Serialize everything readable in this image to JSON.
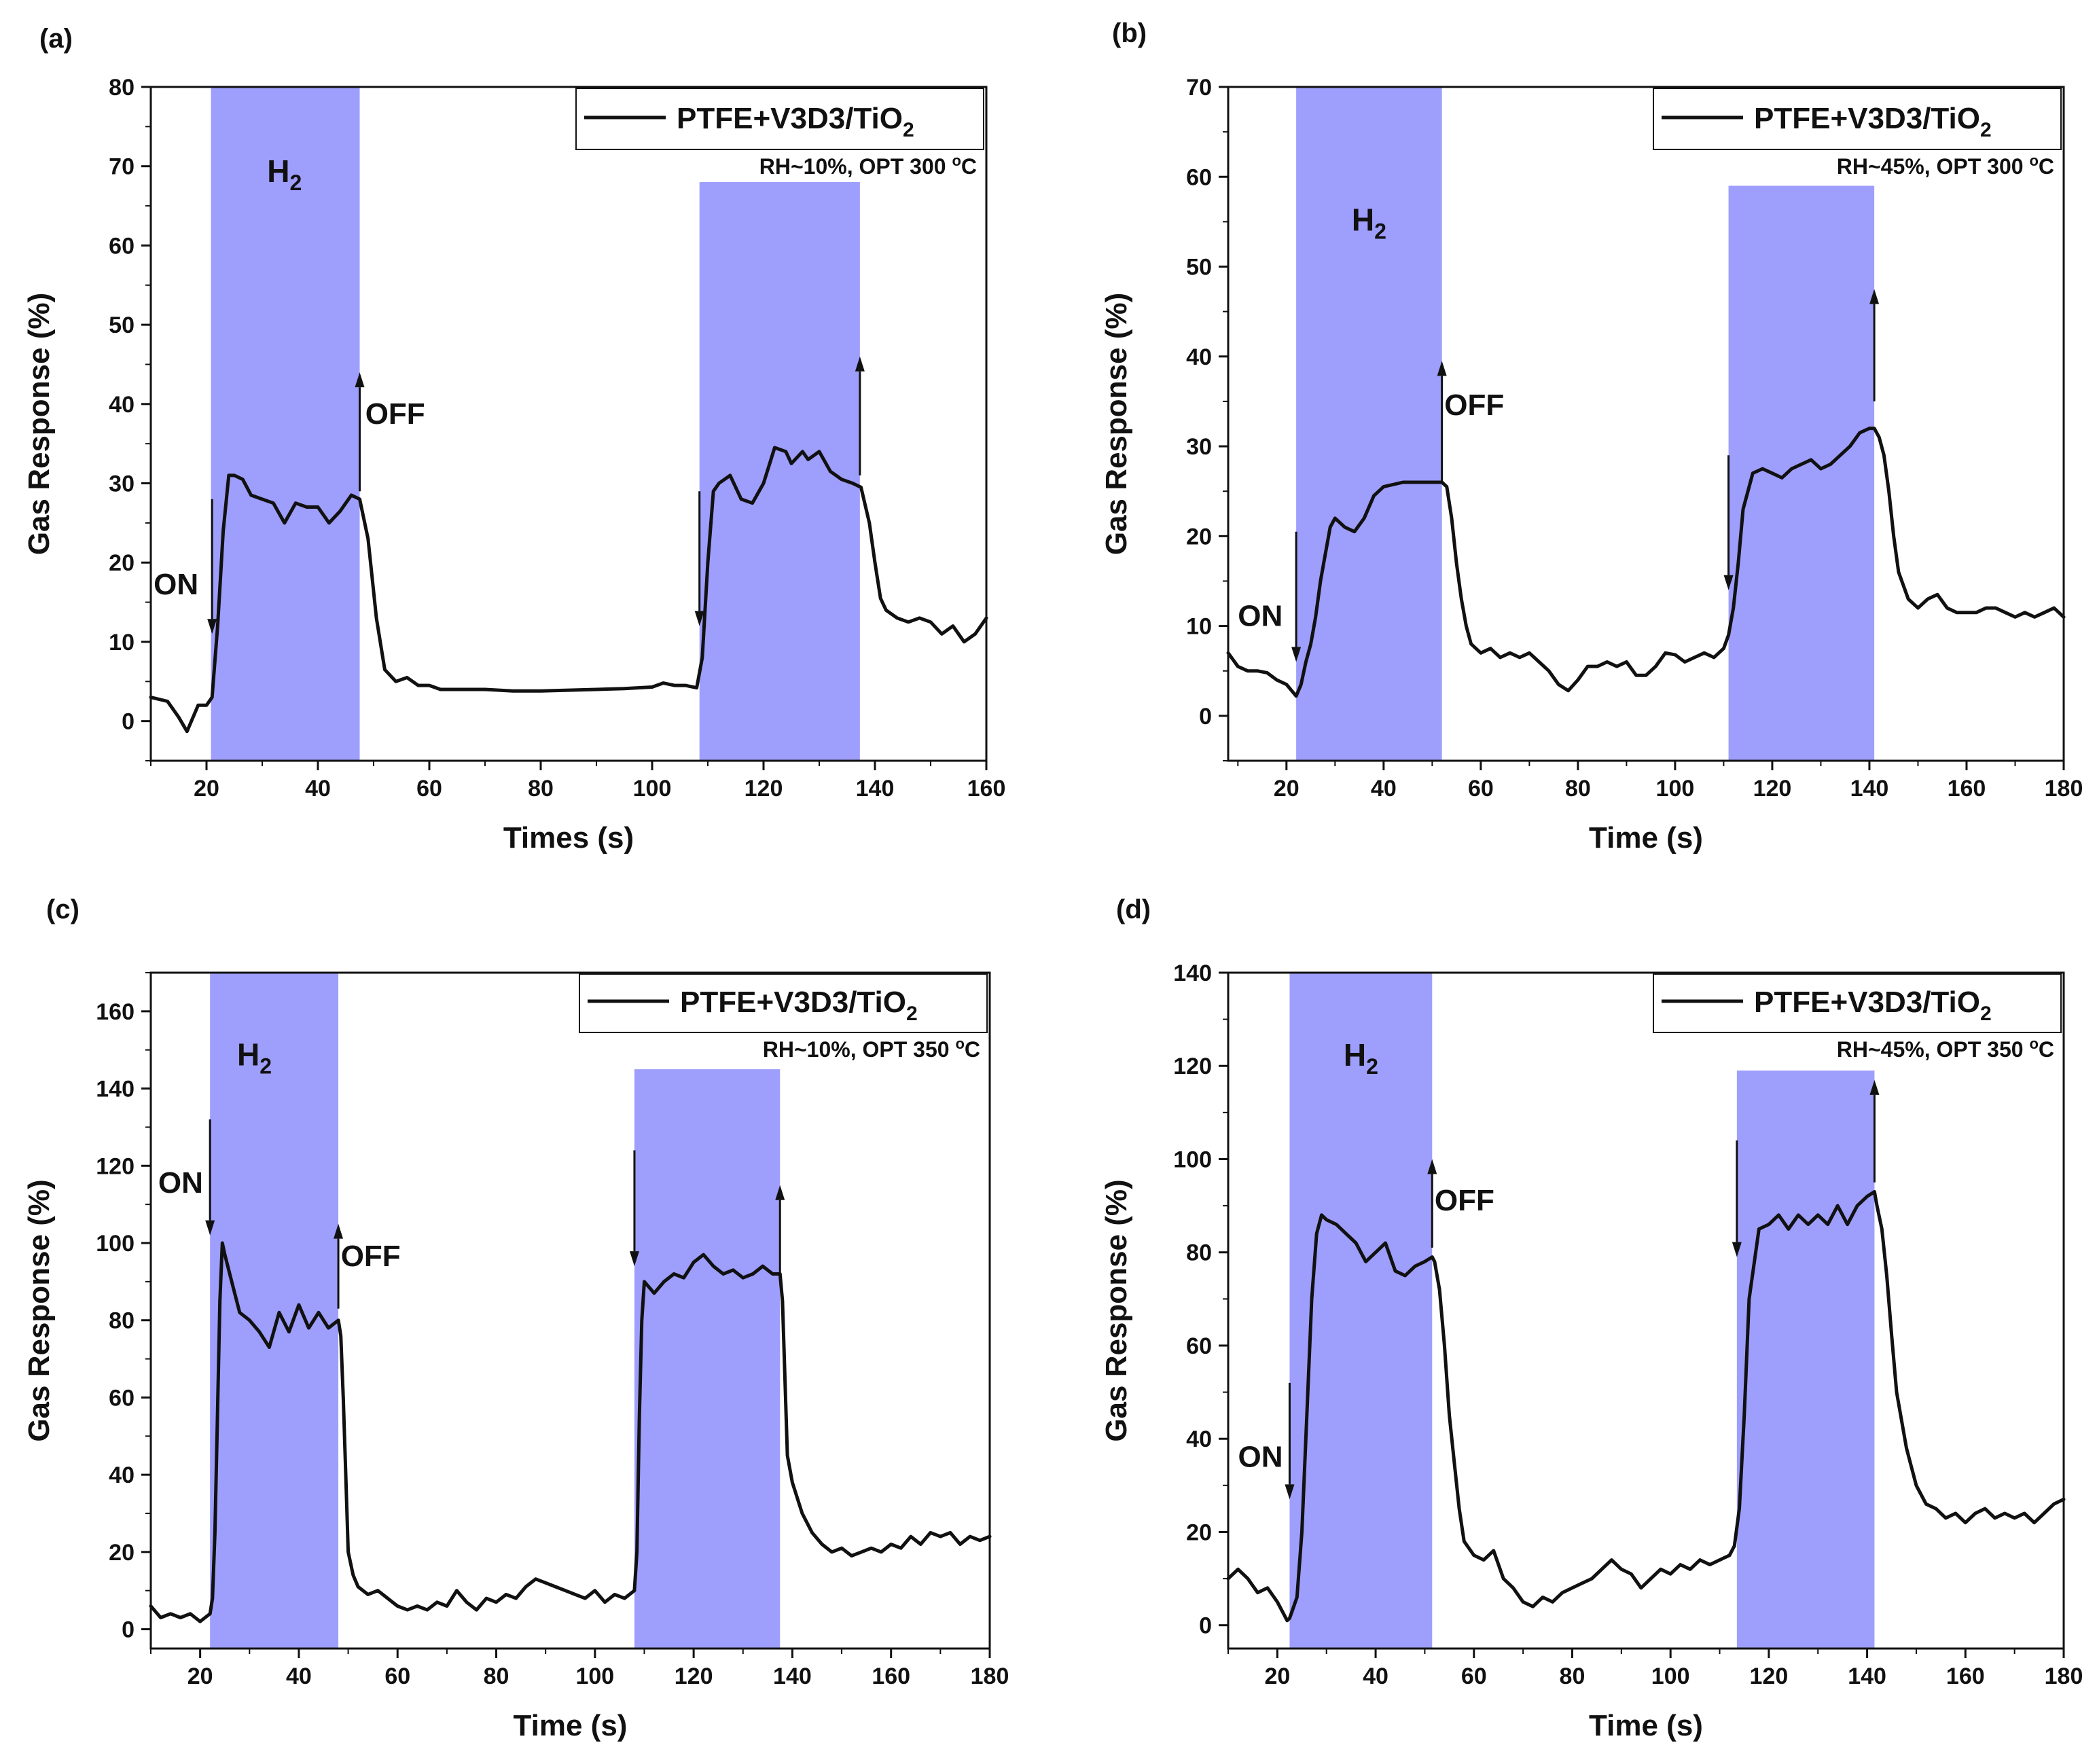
{
  "chart_data": [
    {
      "panel": "(a)",
      "type": "line",
      "title": "",
      "xlabel": "Times (s)",
      "ylabel": "Gas Response (%)",
      "xlim": [
        10,
        160
      ],
      "ylim": [
        -5,
        80
      ],
      "xticks": [
        20,
        40,
        60,
        80,
        100,
        120,
        140,
        160
      ],
      "yticks": [
        0,
        10,
        20,
        30,
        40,
        50,
        60,
        70,
        80
      ],
      "legend": {
        "label": "PTFE+V3D3/TiO",
        "subscript": "2",
        "position": "top-right"
      },
      "condition": {
        "text": "RH~10%, OPT 300 ",
        "superscript": "o",
        "tail": "C"
      },
      "gas_windows": [
        {
          "start": 20.8,
          "end": 47.5,
          "top": 80
        },
        {
          "start": 108.5,
          "end": 137.3,
          "top": 68
        }
      ],
      "gas_label": {
        "text": "H",
        "subscript": "2",
        "x": 34,
        "y": 68
      },
      "annotations": [
        {
          "kind": "on",
          "text": "ON",
          "x": 21,
          "y_from": 28,
          "y_to": 11,
          "text_x": 10.5,
          "text_y": 16
        },
        {
          "kind": "off",
          "text": "OFF",
          "x": 47.5,
          "y_from": 29,
          "y_to": 44,
          "text_x": 48.5,
          "text_y": 37.5
        },
        {
          "kind": "on",
          "text": "",
          "x": 108.5,
          "y_from": 29,
          "y_to": 12
        },
        {
          "kind": "off",
          "text": "",
          "x": 137.3,
          "y_from": 31,
          "y_to": 46
        }
      ],
      "series": [
        {
          "name": "PTFE+V3D3/TiO2",
          "x": [
            10,
            13,
            15,
            16.5,
            18.5,
            20,
            21,
            22,
            23,
            24,
            25,
            26.5,
            28,
            30,
            32,
            34,
            36,
            38,
            40,
            42,
            44,
            46,
            47.5,
            49,
            50.5,
            52,
            54,
            56,
            58,
            60,
            62,
            66,
            70,
            75,
            80,
            85,
            90,
            95,
            100,
            102,
            104,
            106,
            108,
            109,
            110,
            111,
            112,
            114,
            116,
            118,
            120,
            122,
            124,
            125,
            127,
            128,
            130,
            132,
            134,
            136,
            137.5,
            139,
            140,
            141,
            142,
            144,
            146,
            148,
            150,
            152,
            154,
            156,
            158,
            160
          ],
          "y": [
            3,
            2.5,
            0.5,
            -1.3,
            2,
            2,
            3,
            12,
            24,
            31,
            31,
            30.5,
            28.5,
            28,
            27.5,
            25,
            27.5,
            27,
            27,
            25,
            26.5,
            28.5,
            28,
            23,
            13,
            6.5,
            5,
            5.5,
            4.5,
            4.5,
            4,
            4,
            4,
            3.8,
            3.8,
            3.9,
            4,
            4.1,
            4.3,
            4.8,
            4.5,
            4.5,
            4.2,
            8,
            20,
            29,
            30,
            31,
            28,
            27.5,
            30,
            34.5,
            34,
            32.5,
            34,
            33,
            34,
            31.5,
            30.5,
            30,
            29.5,
            25,
            20,
            15.5,
            14,
            13,
            12.5,
            13,
            12.5,
            11,
            12,
            10,
            11,
            13
          ]
        }
      ]
    },
    {
      "panel": "(b)",
      "type": "line",
      "title": "",
      "xlabel": "Time (s)",
      "ylabel": "Gas Response (%)",
      "xlim": [
        8,
        180
      ],
      "ylim": [
        -5,
        70
      ],
      "xticks": [
        20,
        40,
        60,
        80,
        100,
        120,
        140,
        160,
        180
      ],
      "yticks": [
        0,
        10,
        20,
        30,
        40,
        50,
        60,
        70
      ],
      "legend": {
        "label": "PTFE+V3D3/TiO",
        "subscript": "2",
        "position": "top-right"
      },
      "condition": {
        "text": "RH~45%, OPT 300 ",
        "superscript": "o",
        "tail": "C"
      },
      "gas_windows": [
        {
          "start": 22,
          "end": 52,
          "top": 70
        },
        {
          "start": 111,
          "end": 141,
          "top": 59
        }
      ],
      "gas_label": {
        "text": "H",
        "subscript": "2",
        "x": 37,
        "y": 54
      },
      "annotations": [
        {
          "kind": "on",
          "text": "ON",
          "x": 22,
          "y_from": 20.5,
          "y_to": 6,
          "text_x": 10,
          "text_y": 10
        },
        {
          "kind": "off",
          "text": "OFF",
          "x": 52,
          "y_from": 26,
          "y_to": 39.5,
          "text_x": 52.5,
          "text_y": 33.5
        },
        {
          "kind": "on",
          "text": "",
          "x": 111,
          "y_from": 29,
          "y_to": 14
        },
        {
          "kind": "off",
          "text": "",
          "x": 141,
          "y_from": 35,
          "y_to": 47.5
        }
      ],
      "series": [
        {
          "name": "PTFE+V3D3/TiO2",
          "x": [
            8,
            10,
            12,
            14,
            16,
            18,
            20,
            22,
            23,
            24,
            25,
            26,
            27,
            28,
            29,
            30,
            32,
            34,
            36,
            38,
            40,
            44,
            48,
            52,
            53,
            54,
            55,
            56,
            57,
            58,
            60,
            62,
            64,
            66,
            68,
            70,
            72,
            74,
            76,
            78,
            80,
            82,
            84,
            86,
            88,
            90,
            92,
            94,
            96,
            98,
            100,
            102,
            104,
            106,
            108,
            110,
            111,
            112,
            113,
            114,
            116,
            118,
            120,
            122,
            124,
            126,
            128,
            130,
            132,
            134,
            136,
            138,
            140,
            141,
            142,
            143,
            144,
            145,
            146,
            148,
            150,
            152,
            154,
            156,
            158,
            160,
            162,
            164,
            166,
            168,
            170,
            172,
            174,
            176,
            178,
            180
          ],
          "y": [
            7,
            5.5,
            5,
            5,
            4.8,
            4,
            3.5,
            2.2,
            3.5,
            6,
            8,
            11,
            15,
            18,
            21,
            22,
            21,
            20.5,
            22,
            24.5,
            25.5,
            26,
            26,
            26,
            25.5,
            22,
            17,
            13,
            10,
            8,
            7,
            7.5,
            6.5,
            7,
            6.5,
            7,
            6,
            5,
            3.5,
            2.8,
            4,
            5.5,
            5.5,
            6,
            5.5,
            6,
            4.5,
            4.5,
            5.5,
            7,
            6.8,
            6,
            6.5,
            7,
            6.5,
            7.5,
            9,
            12,
            17,
            23,
            27,
            27.5,
            27,
            26.5,
            27.5,
            28,
            28.5,
            27.5,
            28,
            29,
            30,
            31.5,
            32,
            32,
            31,
            29,
            25,
            20,
            16,
            13,
            12,
            13,
            13.5,
            12,
            11.5,
            11.5,
            11.5,
            12,
            12,
            11.5,
            11,
            11.5,
            11,
            11.5,
            12,
            11
          ]
        }
      ]
    },
    {
      "panel": "(c)",
      "type": "line",
      "title": "",
      "xlabel": "Time (s)",
      "ylabel": "Gas Response (%)",
      "xlim": [
        10,
        180
      ],
      "ylim": [
        -5,
        170
      ],
      "xticks": [
        20,
        40,
        60,
        80,
        100,
        120,
        140,
        160,
        180
      ],
      "yticks": [
        0,
        20,
        40,
        60,
        80,
        100,
        120,
        140,
        160
      ],
      "legend": {
        "label": "PTFE+V3D3/TiO",
        "subscript": "2",
        "position": "top-right"
      },
      "condition": {
        "text": "RH~10%, OPT 350 ",
        "superscript": "o",
        "tail": "C"
      },
      "gas_windows": [
        {
          "start": 22,
          "end": 48,
          "top": 170
        },
        {
          "start": 108,
          "end": 137.5,
          "top": 145
        }
      ],
      "gas_label": {
        "text": "H",
        "subscript": "2",
        "x": 31,
        "y": 146
      },
      "annotations": [
        {
          "kind": "on",
          "text": "ON",
          "x": 22,
          "y_from": 132,
          "y_to": 102,
          "text_x": 11.5,
          "text_y": 113
        },
        {
          "kind": "off",
          "text": "OFF",
          "x": 48,
          "y_from": 83,
          "y_to": 105,
          "text_x": 48.5,
          "text_y": 94
        },
        {
          "kind": "on",
          "text": "",
          "x": 108,
          "y_from": 124,
          "y_to": 94
        },
        {
          "kind": "off",
          "text": "",
          "x": 137.5,
          "y_from": 92,
          "y_to": 115
        }
      ],
      "series": [
        {
          "name": "PTFE+V3D3/TiO2",
          "x": [
            10,
            12,
            14,
            16,
            18,
            20,
            22,
            22.5,
            23,
            23.5,
            24,
            24.5,
            25,
            26,
            27,
            28,
            30,
            32,
            34,
            36,
            38,
            40,
            42,
            44,
            46,
            48,
            48.5,
            49,
            49.5,
            50,
            51,
            52,
            54,
            56,
            58,
            60,
            62,
            64,
            66,
            68,
            70,
            72,
            74,
            76,
            78,
            80,
            82,
            84,
            86,
            88,
            90,
            92,
            94,
            96,
            98,
            100,
            102,
            104,
            106,
            108,
            108.5,
            109,
            109.5,
            110,
            112,
            114,
            116,
            118,
            120,
            122,
            124,
            126,
            128,
            130,
            132,
            134,
            136,
            137.5,
            138,
            138.5,
            139,
            140,
            142,
            144,
            146,
            148,
            150,
            152,
            154,
            156,
            158,
            160,
            162,
            164,
            166,
            168,
            170,
            172,
            174,
            176,
            178,
            180
          ],
          "y": [
            6,
            3,
            4,
            3,
            4,
            2,
            4,
            8,
            25,
            55,
            85,
            100,
            97,
            92,
            87,
            82,
            80,
            77,
            73,
            82,
            77,
            84,
            78,
            82,
            78,
            80,
            76,
            60,
            40,
            20,
            14,
            11,
            9,
            10,
            8,
            6,
            5,
            6,
            5,
            7,
            6,
            10,
            7,
            5,
            8,
            7,
            9,
            8,
            11,
            13,
            12,
            11,
            10,
            9,
            8,
            10,
            7,
            9,
            8,
            10,
            20,
            55,
            80,
            90,
            87,
            90,
            92,
            91,
            95,
            97,
            94,
            92,
            93,
            91,
            92,
            94,
            92,
            92,
            85,
            65,
            45,
            38,
            30,
            25,
            22,
            20,
            21,
            19,
            20,
            21,
            20,
            22,
            21,
            24,
            22,
            25,
            24,
            25,
            22,
            24,
            23,
            24
          ]
        }
      ]
    },
    {
      "panel": "(d)",
      "type": "line",
      "title": "",
      "xlabel": "Time (s)",
      "ylabel": "Gas Response (%)",
      "xlim": [
        10,
        180
      ],
      "ylim": [
        -5,
        140
      ],
      "xticks": [
        20,
        40,
        60,
        80,
        100,
        120,
        140,
        160,
        180
      ],
      "yticks": [
        0,
        20,
        40,
        60,
        80,
        100,
        120,
        140
      ],
      "legend": {
        "label": "PTFE+V3D3/TiO",
        "subscript": "2",
        "position": "top-right"
      },
      "condition": {
        "text": "RH~45%, OPT 350 ",
        "superscript": "o",
        "tail": "C"
      },
      "gas_windows": [
        {
          "start": 22.5,
          "end": 51.5,
          "top": 140
        },
        {
          "start": 113.5,
          "end": 141.5,
          "top": 119
        }
      ],
      "gas_label": {
        "text": "H",
        "subscript": "2",
        "x": 37,
        "y": 120
      },
      "annotations": [
        {
          "kind": "on",
          "text": "ON",
          "x": 22.5,
          "y_from": 52,
          "y_to": 27,
          "text_x": 12,
          "text_y": 34
        },
        {
          "kind": "off",
          "text": "OFF",
          "x": 51.5,
          "y_from": 81,
          "y_to": 100,
          "text_x": 52,
          "text_y": 89
        },
        {
          "kind": "on",
          "text": "",
          "x": 113.5,
          "y_from": 104,
          "y_to": 79
        },
        {
          "kind": "off",
          "text": "",
          "x": 141.5,
          "y_from": 95,
          "y_to": 117
        }
      ],
      "series": [
        {
          "name": "PTFE+V3D3/TiO2",
          "x": [
            10,
            12,
            14,
            16,
            18,
            20,
            21,
            22,
            22.5,
            23,
            24,
            25,
            26,
            27,
            28,
            29,
            30,
            32,
            34,
            36,
            38,
            40,
            42,
            44,
            46,
            48,
            50,
            51.5,
            52,
            53,
            54,
            55,
            56,
            57,
            58,
            60,
            62,
            64,
            66,
            68,
            70,
            72,
            74,
            76,
            78,
            80,
            82,
            84,
            86,
            88,
            90,
            92,
            94,
            96,
            98,
            100,
            102,
            104,
            106,
            108,
            110,
            112,
            113,
            114,
            115,
            116,
            118,
            120,
            122,
            124,
            126,
            128,
            130,
            132,
            134,
            136,
            138,
            140,
            141.5,
            142,
            143,
            144,
            145,
            146,
            148,
            150,
            152,
            154,
            156,
            158,
            160,
            162,
            164,
            166,
            168,
            170,
            172,
            174,
            176,
            178,
            180
          ],
          "y": [
            10,
            12,
            10,
            7,
            8,
            5,
            3,
            1,
            1.5,
            3,
            6,
            20,
            45,
            70,
            84,
            88,
            87,
            86,
            84,
            82,
            78,
            80,
            82,
            76,
            75,
            77,
            78,
            79,
            78,
            72,
            60,
            45,
            35,
            25,
            18,
            15,
            14,
            16,
            10,
            8,
            5,
            4,
            6,
            5,
            7,
            8,
            9,
            10,
            12,
            14,
            12,
            11,
            8,
            10,
            12,
            11,
            13,
            12,
            14,
            13,
            14,
            15,
            17,
            25,
            45,
            70,
            85,
            86,
            88,
            85,
            88,
            86,
            88,
            86,
            90,
            86,
            90,
            92,
            93,
            90,
            85,
            75,
            62,
            50,
            38,
            30,
            26,
            25,
            23,
            24,
            22,
            24,
            25,
            23,
            24,
            23,
            24,
            22,
            24,
            26,
            27
          ]
        }
      ]
    }
  ]
}
